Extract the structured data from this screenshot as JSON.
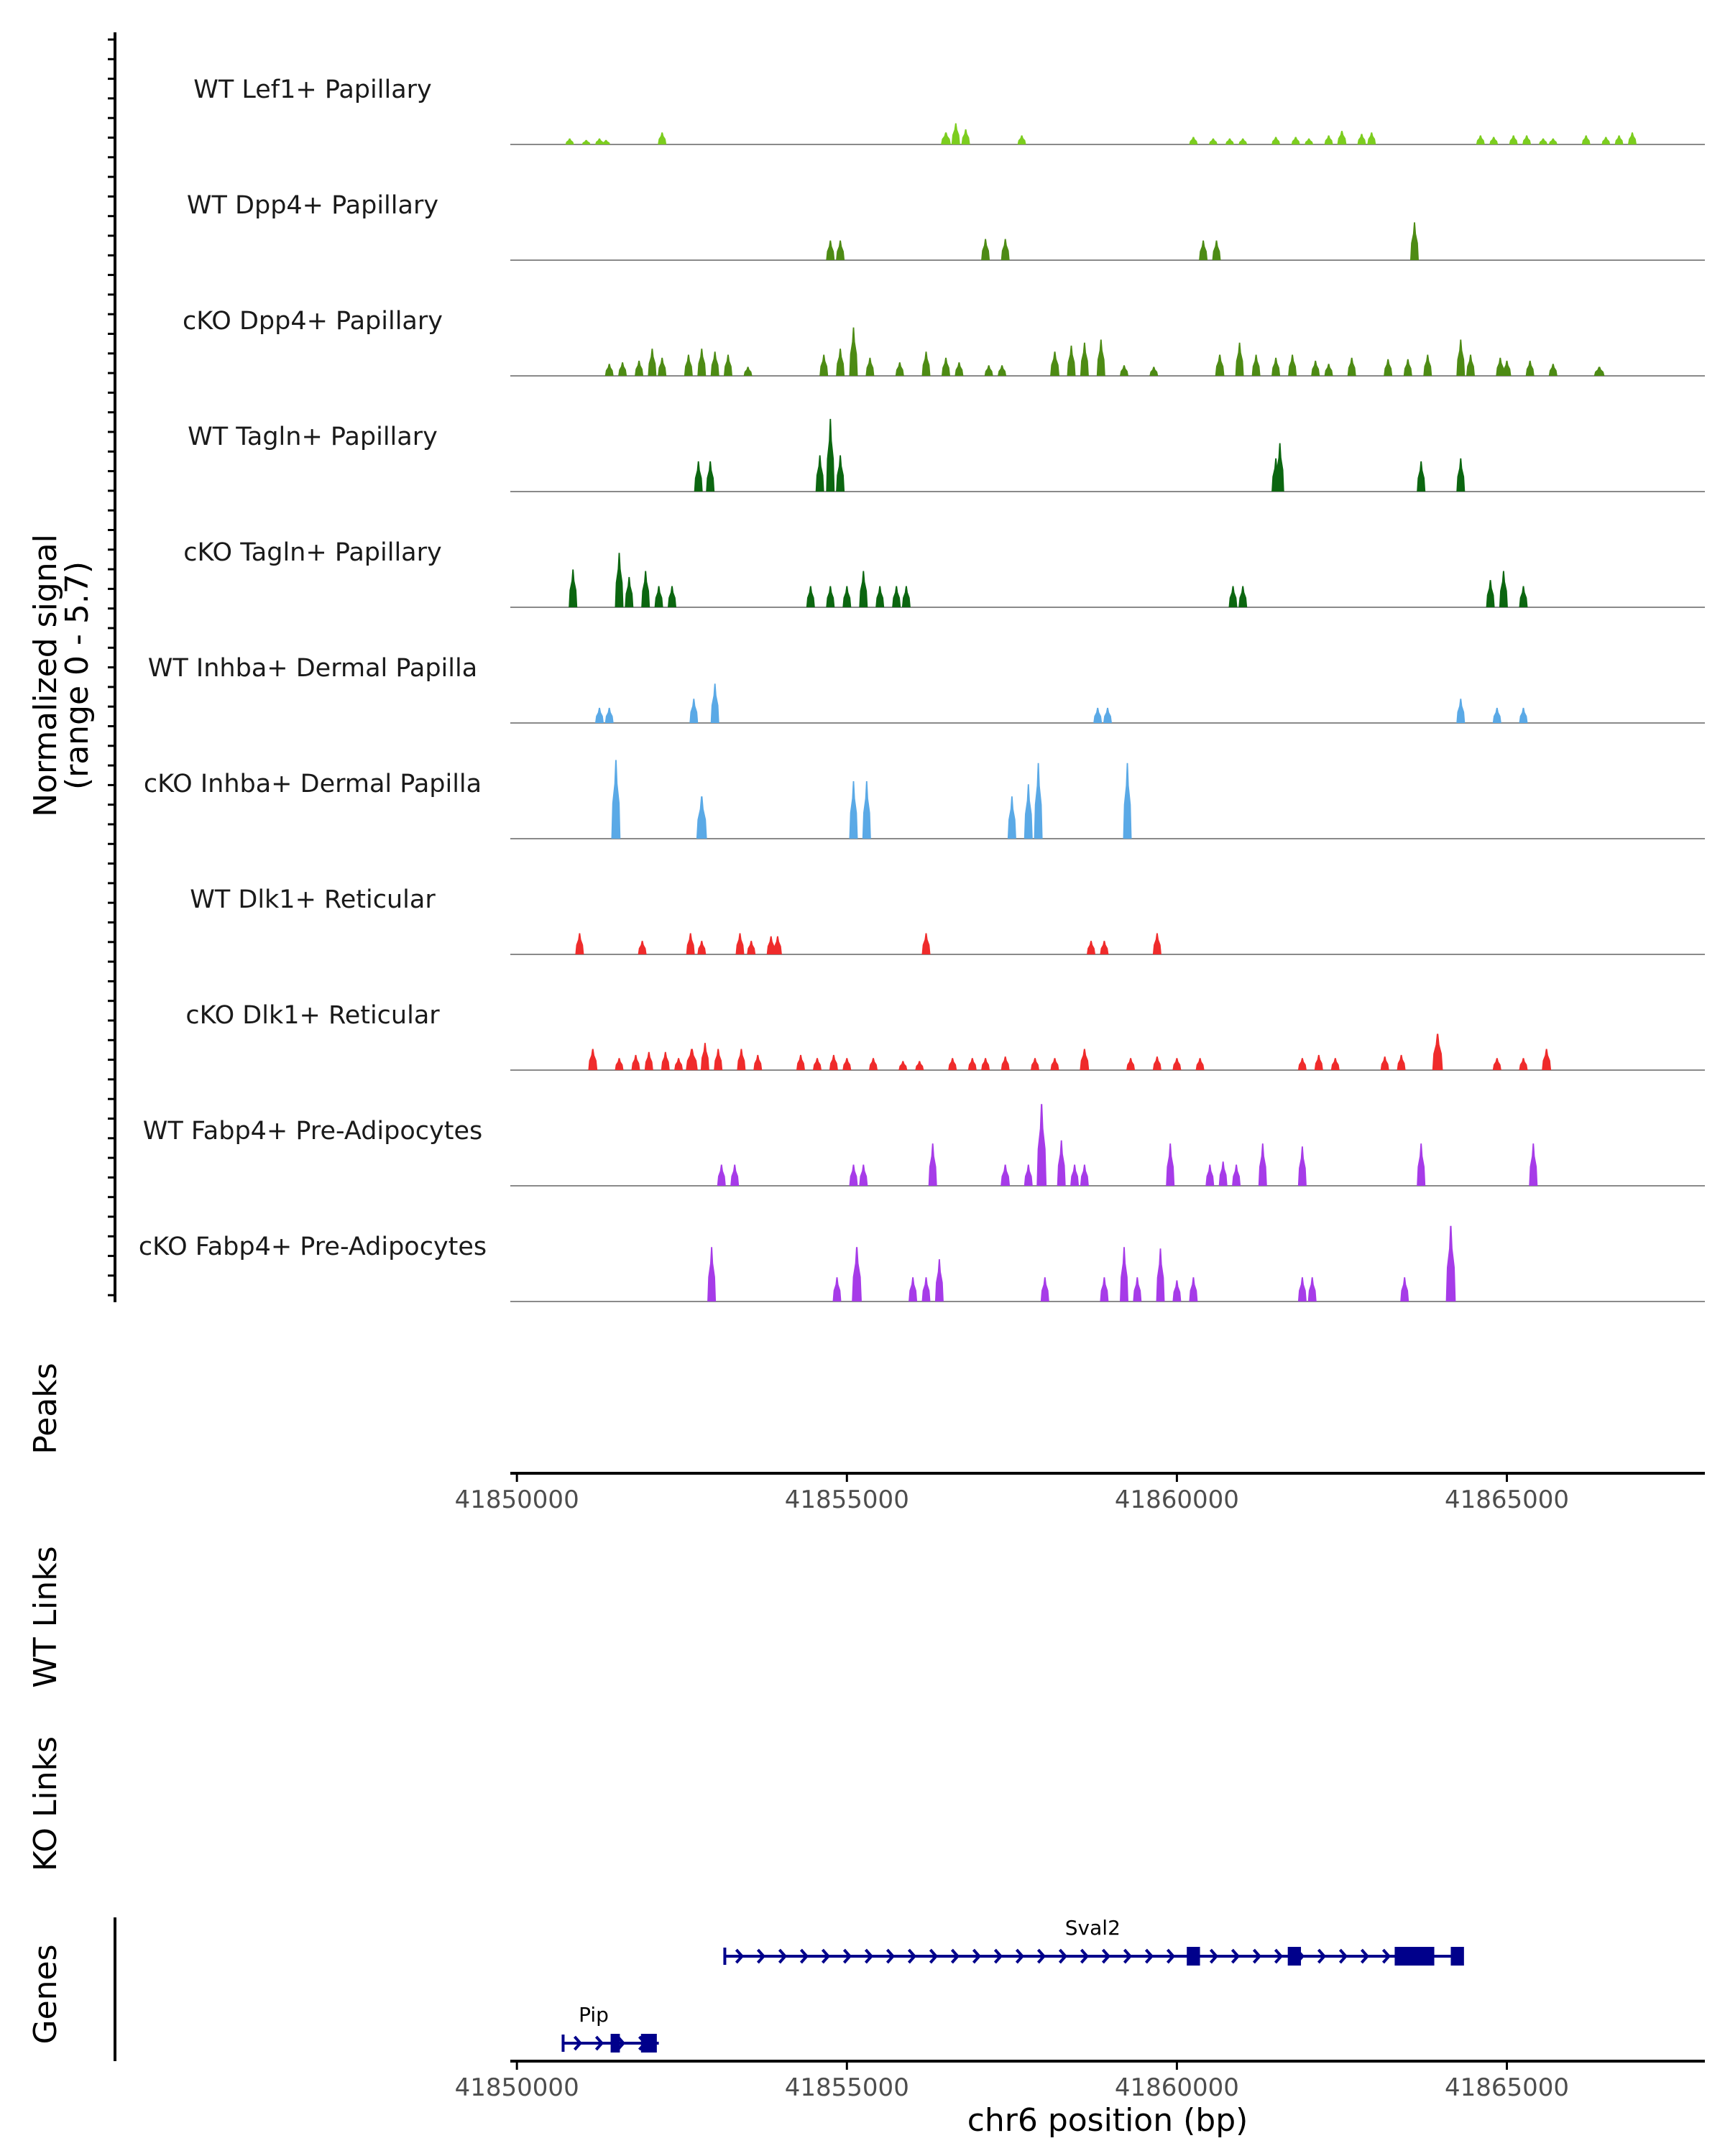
{
  "chart_data": {
    "type": "area",
    "title": "",
    "chromosome": "chr6",
    "xlabel": "chr6 position (bp)",
    "xlim": [
      41849900,
      41868000
    ],
    "x_ticks": [
      41850000,
      41855000,
      41860000,
      41865000
    ],
    "x_tick_labels": [
      "41850000",
      "41855000",
      "41860000",
      "41865000"
    ],
    "ylabel_line1": "Normalized signal",
    "ylabel_line2": "(range 0 - 5.7)",
    "ylim": [
      0,
      5.7
    ],
    "section_labels": {
      "peaks": "Peaks",
      "wt_links": "WT Links",
      "ko_links": "KO Links",
      "genes": "Genes"
    },
    "tracks": [
      {
        "name": "WT Lef1+ Papillary",
        "color": "#7ccd1f",
        "peaks": [
          [
            41850800,
            70,
            0.4
          ],
          [
            41851050,
            70,
            0.3
          ],
          [
            41851250,
            60,
            0.4
          ],
          [
            41851350,
            50,
            0.3
          ],
          [
            41852200,
            120,
            0.8
          ],
          [
            41856500,
            150,
            0.8
          ],
          [
            41856650,
            120,
            1.4
          ],
          [
            41856800,
            80,
            1.0
          ],
          [
            41857650,
            80,
            0.6
          ],
          [
            41860250,
            100,
            0.5
          ],
          [
            41860550,
            80,
            0.4
          ],
          [
            41860800,
            60,
            0.4
          ],
          [
            41861000,
            50,
            0.4
          ],
          [
            41861500,
            80,
            0.5
          ],
          [
            41861800,
            80,
            0.5
          ],
          [
            41862000,
            60,
            0.4
          ],
          [
            41862300,
            80,
            0.6
          ],
          [
            41862500,
            140,
            0.9
          ],
          [
            41862800,
            80,
            0.7
          ],
          [
            41862950,
            100,
            0.8
          ],
          [
            41864600,
            100,
            0.6
          ],
          [
            41864800,
            80,
            0.5
          ],
          [
            41865100,
            80,
            0.6
          ],
          [
            41865300,
            80,
            0.6
          ],
          [
            41865550,
            70,
            0.4
          ],
          [
            41865700,
            60,
            0.4
          ],
          [
            41866200,
            100,
            0.6
          ],
          [
            41866500,
            80,
            0.5
          ],
          [
            41866700,
            80,
            0.6
          ],
          [
            41866900,
            80,
            0.8
          ]
        ]
      },
      {
        "name": "WT Dpp4+ Papillary",
        "color": "#4d8b14",
        "peaks": [
          [
            41854750,
            70,
            1.3
          ],
          [
            41854900,
            70,
            1.3
          ],
          [
            41857100,
            60,
            1.4
          ],
          [
            41857400,
            70,
            1.4
          ],
          [
            41860400,
            70,
            1.3
          ],
          [
            41860600,
            70,
            1.3
          ],
          [
            41863600,
            90,
            2.5
          ]
        ]
      },
      {
        "name": "cKO Dpp4+ Papillary",
        "color": "#4d8b14",
        "peaks": [
          [
            41851400,
            60,
            0.8
          ],
          [
            41851600,
            60,
            0.9
          ],
          [
            41851850,
            70,
            1.0
          ],
          [
            41852050,
            100,
            1.8
          ],
          [
            41852200,
            80,
            1.2
          ],
          [
            41852600,
            100,
            1.4
          ],
          [
            41852800,
            100,
            1.8
          ],
          [
            41853000,
            80,
            1.6
          ],
          [
            41853200,
            100,
            1.4
          ],
          [
            41853500,
            80,
            0.6
          ],
          [
            41854650,
            120,
            1.4
          ],
          [
            41854900,
            80,
            1.8
          ],
          [
            41855100,
            120,
            3.2
          ],
          [
            41855350,
            80,
            1.2
          ],
          [
            41855800,
            80,
            0.9
          ],
          [
            41856200,
            120,
            1.6
          ],
          [
            41856500,
            100,
            1.2
          ],
          [
            41856700,
            100,
            0.9
          ],
          [
            41857150,
            80,
            0.7
          ],
          [
            41857350,
            80,
            0.7
          ],
          [
            41858150,
            140,
            1.6
          ],
          [
            41858400,
            120,
            2.0
          ],
          [
            41858600,
            100,
            2.2
          ],
          [
            41858850,
            100,
            2.4
          ],
          [
            41859200,
            60,
            0.7
          ],
          [
            41859650,
            60,
            0.6
          ],
          [
            41860650,
            140,
            1.4
          ],
          [
            41860950,
            100,
            2.2
          ],
          [
            41861200,
            100,
            1.4
          ],
          [
            41861500,
            100,
            1.2
          ],
          [
            41861750,
            80,
            1.4
          ],
          [
            41862100,
            80,
            1.0
          ],
          [
            41862300,
            60,
            0.8
          ],
          [
            41862650,
            60,
            1.2
          ],
          [
            41863200,
            80,
            1.1
          ],
          [
            41863500,
            100,
            1.1
          ],
          [
            41863800,
            100,
            1.4
          ],
          [
            41864300,
            120,
            2.4
          ],
          [
            41864450,
            60,
            1.4
          ],
          [
            41864900,
            60,
            1.2
          ],
          [
            41865000,
            60,
            1.0
          ],
          [
            41865350,
            70,
            1.0
          ],
          [
            41865700,
            60,
            0.8
          ],
          [
            41866400,
            160,
            0.6
          ]
        ]
      },
      {
        "name": "WT Tagln+ Papillary",
        "color": "#0b6610",
        "peaks": [
          [
            41852750,
            80,
            2.0
          ],
          [
            41852930,
            80,
            2.0
          ],
          [
            41854590,
            110,
            2.4
          ],
          [
            41854750,
            90,
            4.8
          ],
          [
            41854900,
            90,
            2.4
          ],
          [
            41861500,
            80,
            2.2
          ],
          [
            41861560,
            60,
            3.2
          ],
          [
            41863700,
            80,
            2.0
          ],
          [
            41864300,
            100,
            2.2
          ]
        ]
      },
      {
        "name": "cKO Tagln+ Papillary",
        "color": "#0b6610",
        "peaks": [
          [
            41850850,
            40,
            2.5
          ],
          [
            41851550,
            90,
            3.6
          ],
          [
            41851700,
            80,
            2.0
          ],
          [
            41851950,
            80,
            2.4
          ],
          [
            41852150,
            70,
            1.4
          ],
          [
            41852350,
            70,
            1.4
          ],
          [
            41854450,
            80,
            1.4
          ],
          [
            41854750,
            60,
            1.4
          ],
          [
            41855000,
            60,
            1.4
          ],
          [
            41855250,
            70,
            2.4
          ],
          [
            41855500,
            70,
            1.4
          ],
          [
            41855750,
            110,
            1.4
          ],
          [
            41855900,
            70,
            1.4
          ],
          [
            41860850,
            120,
            1.4
          ],
          [
            41861000,
            100,
            1.4
          ],
          [
            41864750,
            100,
            1.8
          ],
          [
            41864950,
            80,
            2.4
          ],
          [
            41865250,
            70,
            1.4
          ]
        ]
      },
      {
        "name": "WT Inhba+ Dermal Papilla",
        "color": "#5aa9e6",
        "peaks": [
          [
            41851250,
            70,
            1.0
          ],
          [
            41851400,
            70,
            1.0
          ],
          [
            41852680,
            90,
            1.6
          ],
          [
            41853000,
            120,
            2.6
          ],
          [
            41858800,
            70,
            1.0
          ],
          [
            41858950,
            80,
            1.0
          ],
          [
            41864300,
            80,
            1.6
          ],
          [
            41864850,
            60,
            1.0
          ],
          [
            41865250,
            60,
            1.0
          ]
        ]
      },
      {
        "name": "cKO Inhba+ Dermal Papilla",
        "color": "#5aa9e6",
        "peaks": [
          [
            41851500,
            140,
            5.2
          ],
          [
            41852800,
            160,
            2.8
          ],
          [
            41855100,
            110,
            3.8
          ],
          [
            41855300,
            110,
            3.8
          ],
          [
            41857500,
            70,
            2.8
          ],
          [
            41857750,
            120,
            3.6
          ],
          [
            41857900,
            120,
            5.0
          ],
          [
            41859250,
            110,
            5.0
          ]
        ]
      },
      {
        "name": "WT Dlk1+ Reticular",
        "color": "#ef2b2b",
        "peaks": [
          [
            41850950,
            100,
            1.4
          ],
          [
            41851900,
            70,
            0.9
          ],
          [
            41852630,
            70,
            1.4
          ],
          [
            41852800,
            70,
            0.9
          ],
          [
            41853380,
            80,
            1.4
          ],
          [
            41853550,
            80,
            0.9
          ],
          [
            41853850,
            80,
            1.2
          ],
          [
            41853950,
            60,
            1.2
          ],
          [
            41856200,
            90,
            1.4
          ],
          [
            41858700,
            70,
            0.9
          ],
          [
            41858900,
            80,
            0.9
          ],
          [
            41859700,
            110,
            1.4
          ]
        ]
      },
      {
        "name": "cKO Dlk1+ Reticular",
        "color": "#ef2b2b",
        "peaks": [
          [
            41851150,
            140,
            1.4
          ],
          [
            41851550,
            60,
            0.8
          ],
          [
            41851800,
            100,
            1.0
          ],
          [
            41852000,
            100,
            1.2
          ],
          [
            41852250,
            80,
            1.2
          ],
          [
            41852450,
            60,
            0.8
          ],
          [
            41852650,
            180,
            1.4
          ],
          [
            41852850,
            120,
            1.8
          ],
          [
            41853050,
            100,
            1.4
          ],
          [
            41853400,
            80,
            1.4
          ],
          [
            41853650,
            80,
            1.0
          ],
          [
            41854300,
            80,
            1.0
          ],
          [
            41854550,
            60,
            0.8
          ],
          [
            41854800,
            80,
            1.0
          ],
          [
            41855000,
            60,
            0.8
          ],
          [
            41855400,
            60,
            0.8
          ],
          [
            41855850,
            60,
            0.6
          ],
          [
            41856100,
            60,
            0.6
          ],
          [
            41856600,
            60,
            0.8
          ],
          [
            41856900,
            80,
            0.8
          ],
          [
            41857100,
            60,
            0.8
          ],
          [
            41857400,
            70,
            0.9
          ],
          [
            41857850,
            60,
            0.8
          ],
          [
            41858150,
            60,
            0.8
          ],
          [
            41858600,
            140,
            1.4
          ],
          [
            41859300,
            60,
            0.8
          ],
          [
            41859700,
            80,
            0.9
          ],
          [
            41860000,
            60,
            0.8
          ],
          [
            41860350,
            60,
            0.8
          ],
          [
            41861900,
            60,
            0.8
          ],
          [
            41862150,
            80,
            1.0
          ],
          [
            41862400,
            60,
            0.8
          ],
          [
            41863150,
            80,
            0.9
          ],
          [
            41863400,
            80,
            1.0
          ],
          [
            41863950,
            160,
            2.4
          ],
          [
            41864850,
            60,
            0.8
          ],
          [
            41865250,
            60,
            0.8
          ],
          [
            41865600,
            140,
            1.4
          ]
        ]
      },
      {
        "name": "WT Fabp4+ Pre-Adipocytes",
        "color": "#a63be8",
        "peaks": [
          [
            41853100,
            70,
            1.4
          ],
          [
            41853300,
            70,
            1.4
          ],
          [
            41855100,
            70,
            1.4
          ],
          [
            41855250,
            70,
            1.4
          ],
          [
            41856300,
            110,
            2.8
          ],
          [
            41857400,
            140,
            1.4
          ],
          [
            41857750,
            70,
            1.4
          ],
          [
            41857950,
            150,
            5.4
          ],
          [
            41858250,
            110,
            3.0
          ],
          [
            41858450,
            80,
            1.4
          ],
          [
            41858600,
            80,
            1.4
          ],
          [
            41859900,
            110,
            2.8
          ],
          [
            41860500,
            80,
            1.4
          ],
          [
            41860700,
            80,
            1.6
          ],
          [
            41860900,
            80,
            1.4
          ],
          [
            41861300,
            100,
            2.8
          ],
          [
            41861900,
            100,
            2.6
          ],
          [
            41863700,
            100,
            2.8
          ],
          [
            41865400,
            90,
            2.8
          ]
        ]
      },
      {
        "name": "cKO Fabp4+ Pre-Adipocytes",
        "color": "#a63be8",
        "peaks": [
          [
            41852950,
            100,
            3.6
          ],
          [
            41854850,
            80,
            1.6
          ],
          [
            41855150,
            150,
            3.6
          ],
          [
            41856000,
            70,
            1.6
          ],
          [
            41856200,
            70,
            1.6
          ],
          [
            41856400,
            100,
            2.8
          ],
          [
            41858000,
            130,
            1.6
          ],
          [
            41858900,
            80,
            1.6
          ],
          [
            41859200,
            80,
            3.6
          ],
          [
            41859400,
            80,
            1.6
          ],
          [
            41859750,
            110,
            3.5
          ],
          [
            41860000,
            60,
            1.4
          ],
          [
            41860250,
            80,
            1.6
          ],
          [
            41861900,
            80,
            1.6
          ],
          [
            41862050,
            80,
            1.6
          ],
          [
            41863450,
            80,
            1.6
          ],
          [
            41864150,
            150,
            5.0
          ]
        ]
      }
    ],
    "genes": [
      {
        "name": "Sval2",
        "strand": "+",
        "start": 41853150,
        "end": 41864300,
        "row": 1,
        "exons": [
          [
            41860150,
            41860350
          ],
          [
            41861680,
            41861880
          ],
          [
            41863300,
            41863900
          ],
          [
            41864150,
            41864350
          ]
        ]
      },
      {
        "name": "Pip",
        "strand": "+",
        "start": 41850700,
        "end": 41852150,
        "row": 2,
        "exons": [
          [
            41851420,
            41851560
          ],
          [
            41851880,
            41852120
          ]
        ]
      }
    ]
  },
  "colors": {
    "baseline": "#8a8a8a",
    "axis": "#000000",
    "tick_text": "#4d4d4d",
    "gene": "#00008b"
  }
}
